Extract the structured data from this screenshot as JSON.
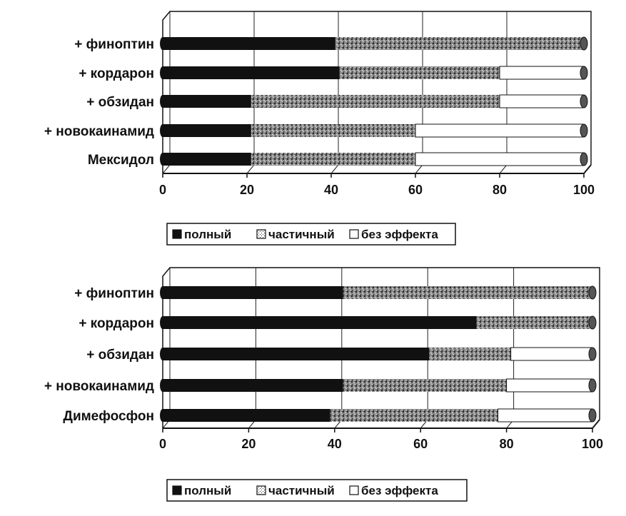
{
  "colors": {
    "full": "#111111",
    "partial": "#7d7d7d",
    "none": "#ffffff",
    "grid": "#222222",
    "frame": "#111111"
  },
  "chart_data": [
    {
      "type": "bar",
      "orientation": "horizontal",
      "stacked": true,
      "title": "",
      "xlabel": "",
      "ylabel": "",
      "xlim": [
        0,
        100
      ],
      "x_ticks": [
        "0",
        "20",
        "40",
        "60",
        "80",
        "100"
      ],
      "grid": true,
      "legend_position": "bottom-center",
      "categories": [
        "+ финоптин",
        "+ кордарон",
        "+ обзидан",
        "+ новокаинамид",
        "Мексидол"
      ],
      "series": [
        {
          "name": "полный",
          "values": [
            41,
            42,
            21,
            21,
            21
          ]
        },
        {
          "name": "частичный",
          "values": [
            59,
            38,
            59,
            39,
            39
          ]
        },
        {
          "name": "без эффекта",
          "values": [
            0,
            20,
            20,
            40,
            40
          ]
        }
      ]
    },
    {
      "type": "bar",
      "orientation": "horizontal",
      "stacked": true,
      "title": "",
      "xlabel": "",
      "ylabel": "",
      "xlim": [
        0,
        100
      ],
      "x_ticks": [
        "0",
        "20",
        "40",
        "60",
        "80",
        "100"
      ],
      "grid": true,
      "legend_position": "bottom-center",
      "categories": [
        "+ финоптин",
        "+ кордарон",
        "+ обзидан",
        "+ новокаинамид",
        "Димефосфон"
      ],
      "series": [
        {
          "name": "полный",
          "values": [
            42,
            73,
            62,
            42,
            39
          ]
        },
        {
          "name": "частичный",
          "values": [
            58,
            27,
            19,
            38,
            39
          ]
        },
        {
          "name": "без эффекта",
          "values": [
            0,
            0,
            19,
            20,
            22
          ]
        }
      ]
    }
  ]
}
